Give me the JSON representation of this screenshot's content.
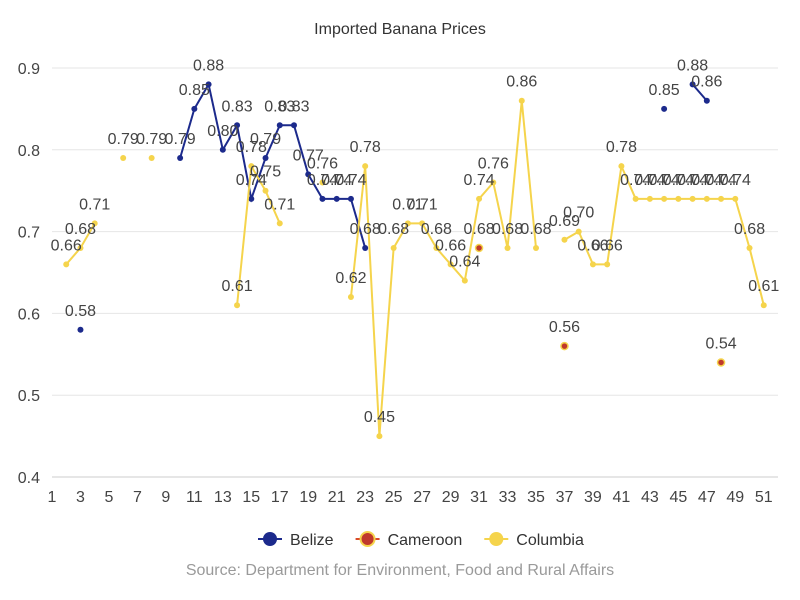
{
  "chart_data": {
    "type": "line",
    "title": "Imported Banana Prices",
    "source": "Source: Department for Environment, Food and Rural Affairs",
    "xlabel": "",
    "ylabel": "",
    "xlim": [
      1,
      52
    ],
    "ylim": [
      0.4,
      0.9
    ],
    "x_ticks": [
      1,
      3,
      5,
      7,
      9,
      11,
      13,
      15,
      17,
      19,
      21,
      23,
      25,
      27,
      29,
      31,
      33,
      35,
      37,
      39,
      41,
      43,
      45,
      47,
      49,
      51
    ],
    "y_ticks": [
      0.4,
      0.5,
      0.6,
      0.7,
      0.8,
      0.9
    ],
    "y_tick_labels": [
      "0.4",
      "0.5",
      "0.6",
      "0.7",
      "0.8",
      "0.9"
    ],
    "legend_position": "bottom",
    "series": [
      {
        "name": "Belize",
        "color": "#1c2a8c",
        "points": [
          {
            "x": 3,
            "y": 0.58
          },
          {
            "x": 10,
            "y": 0.79
          },
          {
            "x": 11,
            "y": 0.85
          },
          {
            "x": 12,
            "y": 0.88
          },
          {
            "x": 13,
            "y": 0.8
          },
          {
            "x": 14,
            "y": 0.83
          },
          {
            "x": 15,
            "y": 0.74
          },
          {
            "x": 16,
            "y": 0.79
          },
          {
            "x": 17,
            "y": 0.83
          },
          {
            "x": 18,
            "y": 0.83
          },
          {
            "x": 19,
            "y": 0.77
          },
          {
            "x": 20,
            "y": 0.74
          },
          {
            "x": 21,
            "y": 0.74
          },
          {
            "x": 22,
            "y": 0.74
          },
          {
            "x": 23,
            "y": 0.68
          },
          {
            "x": 44,
            "y": 0.85
          },
          {
            "x": 46,
            "y": 0.88
          },
          {
            "x": 47,
            "y": 0.86
          }
        ]
      },
      {
        "name": "Cameroon",
        "color": "#d94a2a",
        "points": [
          {
            "x": 31,
            "y": 0.68
          },
          {
            "x": 37,
            "y": 0.56
          },
          {
            "x": 48,
            "y": 0.54
          }
        ]
      },
      {
        "name": "Columbia",
        "color": "#f5d44c",
        "points": [
          {
            "x": 2,
            "y": 0.66
          },
          {
            "x": 3,
            "y": 0.68
          },
          {
            "x": 4,
            "y": 0.71
          },
          {
            "x": 6,
            "y": 0.79
          },
          {
            "x": 8,
            "y": 0.79
          },
          {
            "x": 14,
            "y": 0.61
          },
          {
            "x": 15,
            "y": 0.78
          },
          {
            "x": 16,
            "y": 0.75
          },
          {
            "x": 17,
            "y": 0.71
          },
          {
            "x": 20,
            "y": 0.76
          },
          {
            "x": 22,
            "y": 0.62
          },
          {
            "x": 23,
            "y": 0.78
          },
          {
            "x": 24,
            "y": 0.45
          },
          {
            "x": 25,
            "y": 0.68
          },
          {
            "x": 26,
            "y": 0.71
          },
          {
            "x": 27,
            "y": 0.71
          },
          {
            "x": 28,
            "y": 0.68
          },
          {
            "x": 29,
            "y": 0.66
          },
          {
            "x": 30,
            "y": 0.64
          },
          {
            "x": 31,
            "y": 0.74
          },
          {
            "x": 32,
            "y": 0.76
          },
          {
            "x": 33,
            "y": 0.68
          },
          {
            "x": 34,
            "y": 0.86
          },
          {
            "x": 35,
            "y": 0.68
          },
          {
            "x": 37,
            "y": 0.69
          },
          {
            "x": 38,
            "y": 0.7
          },
          {
            "x": 39,
            "y": 0.66
          },
          {
            "x": 40,
            "y": 0.66
          },
          {
            "x": 41,
            "y": 0.78
          },
          {
            "x": 42,
            "y": 0.74
          },
          {
            "x": 43,
            "y": 0.74
          },
          {
            "x": 44,
            "y": 0.74
          },
          {
            "x": 45,
            "y": 0.74
          },
          {
            "x": 46,
            "y": 0.74
          },
          {
            "x": 47,
            "y": 0.74
          },
          {
            "x": 48,
            "y": 0.74
          },
          {
            "x": 49,
            "y": 0.74
          },
          {
            "x": 50,
            "y": 0.68
          },
          {
            "x": 51,
            "y": 0.61
          }
        ]
      }
    ]
  }
}
